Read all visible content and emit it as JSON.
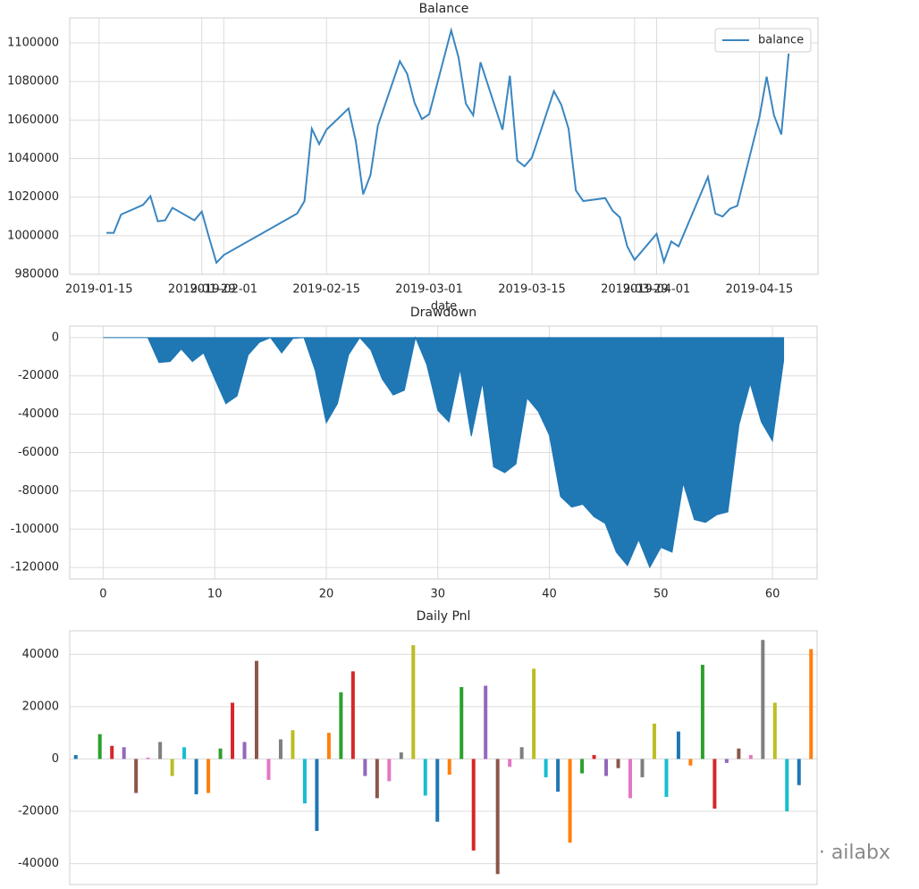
{
  "chart_data": [
    {
      "type": "line",
      "title": "Balance",
      "xlabel": "date",
      "x": [
        "2019-01-16",
        "2019-01-17",
        "2019-01-18",
        "2019-01-21",
        "2019-01-22",
        "2019-01-23",
        "2019-01-24",
        "2019-01-25",
        "2019-01-28",
        "2019-01-29",
        "2019-01-30",
        "2019-01-31",
        "2019-02-01",
        "2019-02-11",
        "2019-02-12",
        "2019-02-13",
        "2019-02-14",
        "2019-02-15",
        "2019-02-18",
        "2019-02-19",
        "2019-02-20",
        "2019-02-21",
        "2019-02-22",
        "2019-02-25",
        "2019-02-26",
        "2019-02-27",
        "2019-02-28",
        "2019-03-01",
        "2019-03-04",
        "2019-03-05",
        "2019-03-06",
        "2019-03-07",
        "2019-03-08",
        "2019-03-11",
        "2019-03-12",
        "2019-03-13",
        "2019-03-14",
        "2019-03-15",
        "2019-03-18",
        "2019-03-19",
        "2019-03-20",
        "2019-03-21",
        "2019-03-22",
        "2019-03-25",
        "2019-03-26",
        "2019-03-27",
        "2019-03-28",
        "2019-03-29",
        "2019-04-01",
        "2019-04-02",
        "2019-04-03",
        "2019-04-04",
        "2019-04-08",
        "2019-04-09",
        "2019-04-10",
        "2019-04-11",
        "2019-04-12",
        "2019-04-15",
        "2019-04-16",
        "2019-04-17",
        "2019-04-18",
        "2019-04-19"
      ],
      "series": [
        {
          "name": "balance",
          "color": "#3a86c1",
          "values": [
            1001500,
            1001500,
            1011000,
            1016000,
            1020500,
            1007500,
            1008000,
            1014500,
            1008000,
            1012500,
            999000,
            986000,
            990000,
            1011500,
            1018000,
            1055500,
            1047500,
            1055000,
            1066000,
            1049000,
            1021500,
            1031500,
            1057000,
            1090500,
            1084000,
            1069000,
            1060500,
            1063000,
            1106500,
            1092500,
            1068500,
            1062500,
            1090000,
            1055000,
            1083000,
            1039000,
            1036000,
            1040500,
            1075000,
            1068000,
            1055500,
            1023500,
            1018000,
            1019500,
            1013000,
            1009500,
            994500,
            987500,
            1001000,
            986500,
            997000,
            994500,
            1030500,
            1011500,
            1010000,
            1014000,
            1015500,
            1061000,
            1082500,
            1062500,
            1052500,
            1094500
          ]
        }
      ],
      "xlim": [
        "2019-01-11",
        "2019-04-23"
      ],
      "xticks": [
        "2019-01-15",
        "2019-01-29",
        "2019-02-01",
        "2019-02-15",
        "2019-03-01",
        "2019-03-15",
        "2019-03-29",
        "2019-04-01",
        "2019-04-15"
      ],
      "ylim": [
        980000,
        1113000
      ],
      "yticks": [
        980000,
        1000000,
        1020000,
        1040000,
        1060000,
        1080000,
        1100000
      ],
      "grid": true,
      "legend": "upper right"
    },
    {
      "type": "area",
      "title": "Drawdown",
      "x": [
        0,
        1,
        2,
        3,
        4,
        5,
        6,
        7,
        8,
        9,
        10,
        11,
        12,
        13,
        14,
        15,
        16,
        17,
        18,
        19,
        20,
        21,
        22,
        23,
        24,
        25,
        26,
        27,
        28,
        29,
        30,
        31,
        32,
        33,
        34,
        35,
        36,
        37,
        38,
        39,
        40,
        41,
        42,
        43,
        44,
        45,
        46,
        47,
        48,
        49,
        50,
        51,
        52,
        53,
        54,
        55,
        56,
        57,
        58,
        59,
        60,
        61
      ],
      "values": [
        0,
        0,
        0,
        0,
        0,
        -13000,
        -12500,
        -6000,
        -12500,
        -8000,
        -21500,
        -34500,
        -30500,
        -9000,
        -2500,
        0,
        -8000,
        -500,
        0,
        -17000,
        -44500,
        -34500,
        -9000,
        0,
        -6500,
        -21500,
        -30000,
        -27500,
        0,
        -14000,
        -38000,
        -44000,
        -16500,
        -51500,
        -23500,
        -67500,
        -70500,
        -66000,
        -31500,
        -38500,
        -51000,
        -83000,
        -88500,
        -87000,
        -93500,
        -97000,
        -112000,
        -119000,
        -105500,
        -120000,
        -109500,
        -112000,
        -76000,
        -95000,
        -96500,
        -92500,
        -91000,
        -45500,
        -24000,
        -44000,
        -54000,
        -12000
      ],
      "color": "#1f77b4",
      "xlim": [
        -3,
        64
      ],
      "xticks": [
        0,
        10,
        20,
        30,
        40,
        50,
        60
      ],
      "ylim": [
        -126000,
        6000
      ],
      "yticks": [
        -120000,
        -100000,
        -80000,
        -60000,
        -40000,
        -20000,
        0
      ],
      "grid": true
    },
    {
      "type": "bar",
      "title": "Daily Pnl",
      "categories": [
        null,
        null,
        null,
        null,
        null,
        null,
        null,
        null,
        null,
        null,
        null,
        null,
        null,
        null,
        null,
        null,
        null,
        null,
        null,
        null,
        null,
        null,
        null,
        null,
        null,
        null,
        null,
        null,
        null,
        null,
        null,
        null,
        null,
        null,
        null,
        null,
        null,
        null,
        null,
        null,
        null,
        null,
        null,
        null,
        null,
        null,
        null,
        null,
        null,
        null,
        null,
        null,
        null,
        null,
        null,
        null,
        null,
        null,
        null,
        null,
        null,
        null
      ],
      "values": [
        1500,
        0,
        9500,
        5000,
        4500,
        -13000,
        500,
        6500,
        -6500,
        4500,
        -13500,
        -13000,
        4000,
        21500,
        6500,
        37500,
        -8000,
        7500,
        11000,
        -17000,
        -27500,
        10000,
        25500,
        33500,
        -6500,
        -15000,
        -8500,
        2500,
        43500,
        -14000,
        -24000,
        -6000,
        27500,
        -35000,
        28000,
        -44000,
        -3000,
        4500,
        34500,
        -7000,
        -12500,
        -32000,
        -5500,
        1500,
        -6500,
        -3500,
        -15000,
        -7000,
        13500,
        -14500,
        10500,
        -2500,
        36000,
        -19000,
        -1500,
        4000,
        1500,
        45500,
        21500,
        -20000,
        -10000,
        42000
      ],
      "color_cycle": [
        "#1f77b4",
        "#ff7f0e",
        "#2ca02c",
        "#d62728",
        "#9467bd",
        "#8c564b",
        "#e377c2",
        "#7f7f7f",
        "#bcbd22",
        "#17becf"
      ],
      "ylim": [
        -48000,
        49000
      ],
      "yticks": [
        -40000,
        -20000,
        0,
        20000,
        40000
      ],
      "grid": true
    }
  ],
  "watermark": "公众号 · ailabx"
}
